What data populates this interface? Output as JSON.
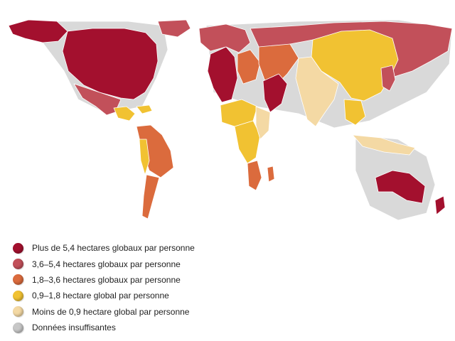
{
  "colors": {
    "very_high": "#a3102e",
    "high": "#c2505a",
    "medium": "#db6b3d",
    "low": "#f1c232",
    "very_low": "#f4d9a4",
    "no_data": "#c7c7c7",
    "shadow": "#d9d9d9"
  },
  "legend": [
    {
      "label": "Plus de 5,4 hectares globaux par personne",
      "color_key": "very_high"
    },
    {
      "label": "3,6–5,4 hectares globaux par personne",
      "color_key": "high"
    },
    {
      "label": "1,8–3,6 hectares globaux par personne",
      "color_key": "medium"
    },
    {
      "label": "0,9–1,8 hectare global par personne",
      "color_key": "low"
    },
    {
      "label": "Moins de 0,9 hectare global par personne",
      "color_key": "very_low"
    },
    {
      "label": "Données insuffisantes",
      "color_key": "no_data"
    }
  ],
  "regions": [
    {
      "name": "north-america",
      "category": "very_high"
    },
    {
      "name": "alaska",
      "category": "very_high"
    },
    {
      "name": "greenland",
      "category": "high"
    },
    {
      "name": "mexico",
      "category": "high"
    },
    {
      "name": "central-america",
      "category": "low"
    },
    {
      "name": "caribbean",
      "category": "low"
    },
    {
      "name": "south-america-north",
      "category": "medium"
    },
    {
      "name": "south-america-south",
      "category": "medium"
    },
    {
      "name": "andes",
      "category": "low"
    },
    {
      "name": "europe-west",
      "category": "very_high"
    },
    {
      "name": "scandinavia",
      "category": "high"
    },
    {
      "name": "europe-east",
      "category": "medium"
    },
    {
      "name": "russia",
      "category": "high"
    },
    {
      "name": "middle-east",
      "category": "very_high"
    },
    {
      "name": "north-africa",
      "category": "low"
    },
    {
      "name": "africa-central",
      "category": "low"
    },
    {
      "name": "africa-east",
      "category": "very_low"
    },
    {
      "name": "southern-africa",
      "category": "medium"
    },
    {
      "name": "madagascar",
      "category": "medium"
    },
    {
      "name": "central-asia",
      "category": "medium"
    },
    {
      "name": "china",
      "category": "low"
    },
    {
      "name": "india",
      "category": "very_low"
    },
    {
      "name": "southeast-asia",
      "category": "low"
    },
    {
      "name": "indonesia",
      "category": "very_low"
    },
    {
      "name": "japan",
      "category": "high"
    },
    {
      "name": "australia",
      "category": "very_high"
    },
    {
      "name": "new-zealand",
      "category": "very_high"
    }
  ]
}
